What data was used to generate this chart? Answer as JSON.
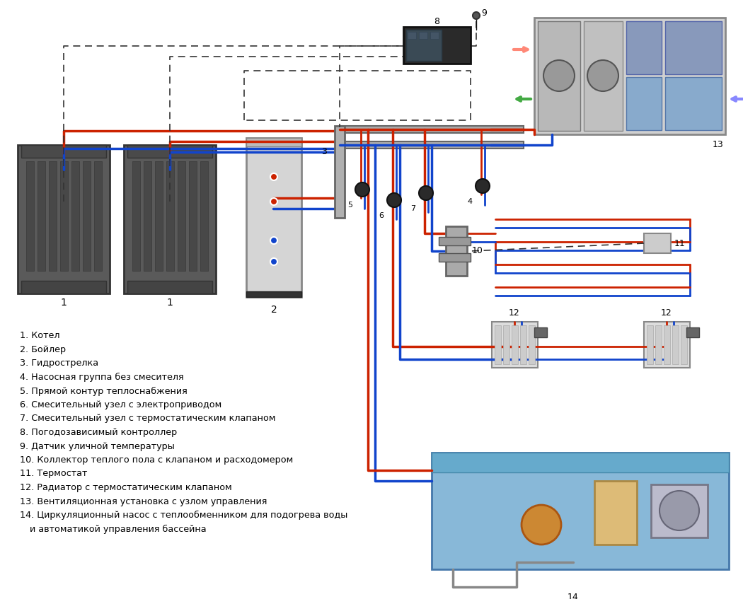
{
  "bg_color": "#ffffff",
  "red": "#cc2200",
  "blue": "#1144cc",
  "black": "#111111",
  "dashed_color": "#333333",
  "legend_items": [
    "1. Котел",
    "2. Бойлер",
    "3. Гидрострелка",
    "4. Насосная группа без смесителя",
    "5. Прямой контур теплоснабжения",
    "6. Смесительный узел с электроприводом",
    "7. Смесительный узел с термостатическим клапаном",
    "8. Погодозависимый контроллер",
    "9. Датчик уличной температуры",
    "10. Коллектор теплого пола с клапаном и расходомером",
    "11. Термостат",
    "12. Радиатор с термостатическим клапаном",
    "13. Вентиляционная установка с узлом управления",
    "14. Циркуляционный насос с теплообменником для подогрева воды"
  ],
  "legend_line14_extra": "и автоматикой управления бассейна"
}
